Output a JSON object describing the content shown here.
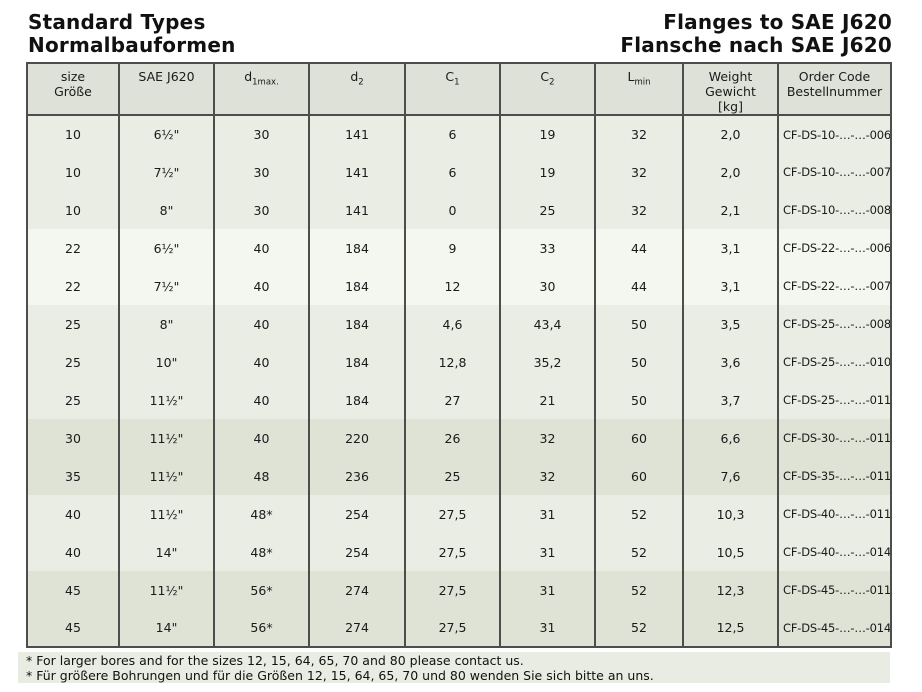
{
  "page": {
    "title_left": [
      "Standard Types",
      "Normalbauformen"
    ],
    "title_right": [
      "Flanges to SAE J620",
      "Flansche nach SAE J620"
    ]
  },
  "table": {
    "headers": {
      "size": {
        "line1": "size",
        "line2": "Größe"
      },
      "sae": "SAE J620",
      "d1": {
        "base": "d",
        "sub": "1max."
      },
      "d2": {
        "base": "d",
        "sub": "2"
      },
      "c1": {
        "base": "C",
        "sub": "1"
      },
      "c2": {
        "base": "C",
        "sub": "2"
      },
      "lmin": {
        "base": "L",
        "sub": "min"
      },
      "weight": {
        "line1": "Weight",
        "line2": "Gewicht",
        "line3": "[kg]"
      },
      "order": {
        "line1": "Order Code",
        "line2": "Bestellnummer"
      }
    },
    "rows": [
      {
        "band": "light",
        "cells": [
          "10",
          "6½\"",
          "30",
          "141",
          "6",
          "19",
          "32",
          "2,0",
          "CF-DS-10-…-…-006"
        ]
      },
      {
        "band": "light",
        "cells": [
          "10",
          "7½\"",
          "30",
          "141",
          "6",
          "19",
          "32",
          "2,0",
          "CF-DS-10-…-…-007"
        ]
      },
      {
        "band": "light",
        "cells": [
          "10",
          "8\"",
          "30",
          "141",
          "0",
          "25",
          "32",
          "2,1",
          "CF-DS-10-…-…-008"
        ]
      },
      {
        "band": "lighter",
        "cells": [
          "22",
          "6½\"",
          "40",
          "184",
          "9",
          "33",
          "44",
          "3,1",
          "CF-DS-22-…-…-006"
        ]
      },
      {
        "band": "lighter",
        "cells": [
          "22",
          "7½\"",
          "40",
          "184",
          "12",
          "30",
          "44",
          "3,1",
          "CF-DS-22-…-…-007"
        ]
      },
      {
        "band": "light",
        "cells": [
          "25",
          "8\"",
          "40",
          "184",
          "4,6",
          "43,4",
          "50",
          "3,5",
          "CF-DS-25-…-…-008"
        ]
      },
      {
        "band": "light",
        "cells": [
          "25",
          "10\"",
          "40",
          "184",
          "12,8",
          "35,2",
          "50",
          "3,6",
          "CF-DS-25-…-…-010"
        ]
      },
      {
        "band": "light",
        "cells": [
          "25",
          "11½\"",
          "40",
          "184",
          "27",
          "21",
          "50",
          "3,7",
          "CF-DS-25-…-…-011"
        ]
      },
      {
        "band": "dark",
        "cells": [
          "30",
          "11½\"",
          "40",
          "220",
          "26",
          "32",
          "60",
          "6,6",
          "CF-DS-30-…-…-011"
        ]
      },
      {
        "band": "dark",
        "cells": [
          "35",
          "11½\"",
          "48",
          "236",
          "25",
          "32",
          "60",
          "7,6",
          "CF-DS-35-…-…-011"
        ]
      },
      {
        "band": "light",
        "cells": [
          "40",
          "11½\"",
          "48*",
          "254",
          "27,5",
          "31",
          "52",
          "10,3",
          "CF-DS-40-…-…-011"
        ]
      },
      {
        "band": "light",
        "cells": [
          "40",
          "14\"",
          "48*",
          "254",
          "27,5",
          "31",
          "52",
          "10,5",
          "CF-DS-40-…-…-014"
        ]
      },
      {
        "band": "dark",
        "cells": [
          "45",
          "11½\"",
          "56*",
          "274",
          "27,5",
          "31",
          "52",
          "12,3",
          "CF-DS-45-…-…-011"
        ]
      },
      {
        "band": "dark",
        "cells": [
          "45",
          "14\"",
          "56*",
          "274",
          "27,5",
          "31",
          "52",
          "12,5",
          "CF-DS-45-…-…-014"
        ]
      }
    ]
  },
  "footnotes": [
    "* For larger bores and for the sizes 12, 15, 64, 65, 70 and 80 please contact us.",
    "* Für größere Bohrungen und für die Größen 12, 15, 64, 65, 70 und 80 wenden Sie sich bitte an uns."
  ],
  "colors": {
    "band_light": "#eaede4",
    "band_lighter": "#f4f6f0",
    "band_dark": "#dfe3d6",
    "header_bg": "#dde1d7",
    "border": "#4d4d4d"
  }
}
